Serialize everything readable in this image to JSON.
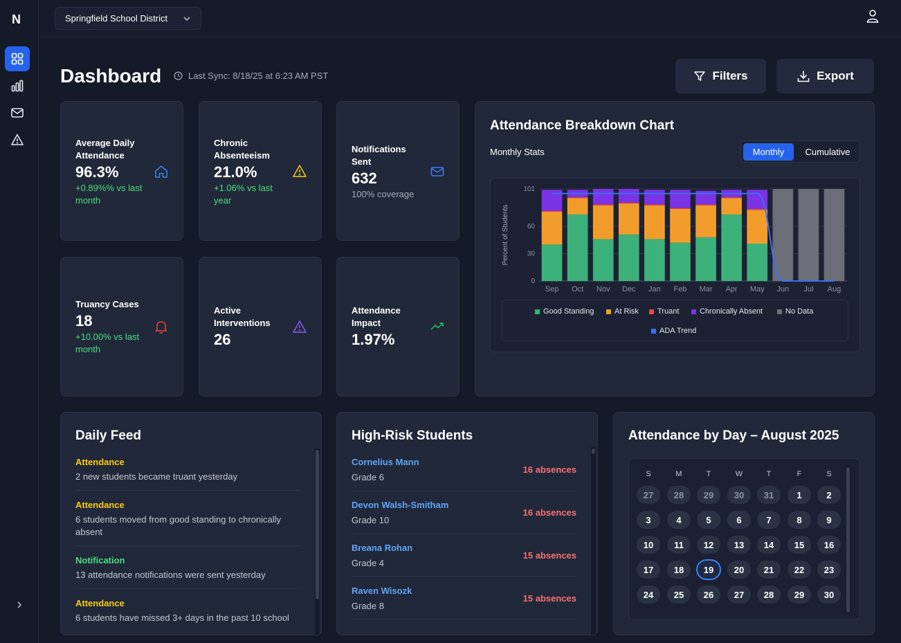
{
  "sidebar": {
    "logo": "N",
    "nav": [
      "dashboard-grid-icon",
      "bar-chart-icon",
      "mail-icon",
      "alert-triangle-icon"
    ],
    "expand_icon": "chevron-right-icon"
  },
  "topbar": {
    "district": "Springfield School District",
    "user_icon": "user-icon"
  },
  "header": {
    "title": "Dashboard",
    "last_sync": "Last Sync: 8/18/25 at 6:23 AM PST",
    "filters_label": "Filters",
    "export_label": "Export"
  },
  "stats": [
    {
      "label": "Average Daily Attendance",
      "value": "96.3%",
      "sub": "+0.89%% vs last month",
      "icon": "home-icon",
      "color": "#3b82f6"
    },
    {
      "label": "Chronic Absenteeism",
      "value": "21.0%",
      "sub": "+1.06% vs last year",
      "icon": "warning-icon",
      "color": "#facc15"
    },
    {
      "label": "Notifications Sent",
      "value": "632",
      "sub": "100% coverage",
      "icon": "mail-icon",
      "color": "#3b82f6"
    },
    {
      "label": "Truancy Cases",
      "value": "18",
      "sub": "+10.00% vs last month",
      "icon": "bell-icon",
      "color": "#ef4444"
    },
    {
      "label": "Active Interventions",
      "value": "26",
      "sub": "",
      "icon": "warning-icon",
      "color": "#8b5cf6"
    },
    {
      "label": "Attendance Impact",
      "value": "1.97%",
      "sub": "",
      "icon": "trending-up-icon",
      "color": "#22c55e"
    }
  ],
  "chart_panel": {
    "title": "Attendance Breakdown Chart",
    "subtitle": "Monthly Stats",
    "toggle": [
      "Monthly",
      "Cumulative"
    ]
  },
  "chart_data": {
    "type": "bar",
    "stacked": true,
    "categories": [
      "Sep",
      "Oct",
      "Nov",
      "Dec",
      "Jan",
      "Feb",
      "Mar",
      "Apr",
      "May",
      "Jun",
      "Jul",
      "Aug"
    ],
    "ylabel": "Percent of Students",
    "ylim": [
      0,
      101
    ],
    "yticks": [
      0,
      30,
      60,
      101
    ],
    "series": [
      {
        "name": "Good Standing",
        "color": "#3cb179",
        "values": [
          40,
          73,
          46,
          51,
          46,
          42,
          48,
          73,
          41,
          0,
          0,
          0
        ]
      },
      {
        "name": "At Risk",
        "color": "#f29d2b",
        "values": [
          36,
          18,
          37,
          34,
          37,
          37,
          35,
          18,
          37,
          0,
          0,
          0
        ]
      },
      {
        "name": "Truant",
        "color": "#e94848",
        "values": [
          1,
          1,
          1,
          1,
          1,
          1,
          1,
          1,
          1,
          0,
          0,
          0
        ]
      },
      {
        "name": "Chronically Absent",
        "color": "#7b33e6",
        "values": [
          23,
          8,
          17,
          15,
          16,
          20,
          15,
          8,
          21,
          0,
          0,
          0
        ]
      },
      {
        "name": "No Data",
        "color": "#6b6e78",
        "values": [
          0,
          0,
          0,
          0,
          0,
          0,
          0,
          0,
          0,
          101,
          101,
          101
        ]
      }
    ],
    "line": {
      "name": "ADA Trend",
      "color": "#3b6ff0",
      "values": [
        96,
        96,
        96,
        96,
        96,
        96,
        96,
        96,
        96,
        0,
        0,
        0
      ]
    },
    "legend": "bottom"
  },
  "feed": {
    "title": "Daily Feed",
    "items": [
      {
        "category": "Attendance",
        "color": "#facc15",
        "text": "2 new students became truant yesterday"
      },
      {
        "category": "Attendance",
        "color": "#facc15",
        "text": "6 students moved from good standing to chronically absent"
      },
      {
        "category": "Notification",
        "color": "#4ade80",
        "text": "13 attendance notifications were sent yesterday"
      },
      {
        "category": "Attendance",
        "color": "#facc15",
        "text": "6 students have missed 3+ days in the past 10 school"
      }
    ]
  },
  "high_risk": {
    "title": "High-Risk Students",
    "students": [
      {
        "name": "Cornelius Mann",
        "grade": "Grade 6",
        "absences": "16 absences"
      },
      {
        "name": "Devon Walsh-Smitham",
        "grade": "Grade 10",
        "absences": "16 absences"
      },
      {
        "name": "Breana Rohan",
        "grade": "Grade 4",
        "absences": "15 absences"
      },
      {
        "name": "Raven Wisozk",
        "grade": "Grade 8",
        "absences": "15 absences"
      }
    ]
  },
  "calendar": {
    "title": "Attendance by Day – August 2025",
    "weekdays": [
      "S",
      "M",
      "T",
      "W",
      "T",
      "F",
      "S"
    ],
    "weeks": [
      [
        "27",
        "28",
        "29",
        "30",
        "31",
        "1",
        "2"
      ],
      [
        "3",
        "4",
        "5",
        "6",
        "7",
        "8",
        "9"
      ],
      [
        "10",
        "11",
        "12",
        "13",
        "14",
        "15",
        "16"
      ],
      [
        "17",
        "18",
        "19",
        "20",
        "21",
        "22",
        "23"
      ],
      [
        "24",
        "25",
        "26",
        "27",
        "28",
        "29",
        "30"
      ]
    ],
    "muted_first_row_count": 5,
    "today": "19"
  }
}
